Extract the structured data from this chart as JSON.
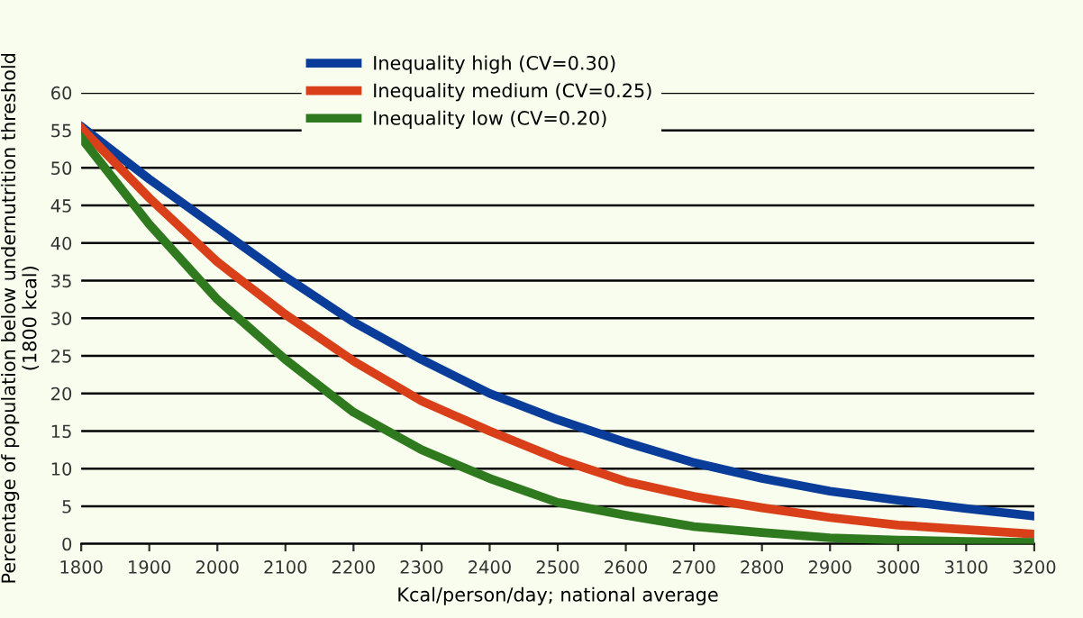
{
  "chart_data": {
    "type": "line",
    "xlabel": "Kcal/person/day; national average",
    "ylabel": "Percentage of population below undernutrition threshold\n(1800 kcal)",
    "x": [
      1800,
      1900,
      2000,
      2100,
      2200,
      2300,
      2400,
      2500,
      2600,
      2700,
      2800,
      2900,
      3000,
      3100,
      3200
    ],
    "series": [
      {
        "name": "Inequality high (CV=0.30)",
        "color": "#0a3c9a",
        "values": [
          55.5,
          48.5,
          42,
          35.5,
          29.5,
          24.5,
          20,
          16.5,
          13.5,
          10.8,
          8.7,
          7,
          5.8,
          4.7,
          3.7
        ]
      },
      {
        "name": "Inequality medium (CV=0.25)",
        "color": "#d9401a",
        "values": [
          55.3,
          46,
          37.5,
          30.5,
          24.3,
          19,
          15,
          11.3,
          8.3,
          6.3,
          4.8,
          3.5,
          2.5,
          1.9,
          1.3
        ]
      },
      {
        "name": "Inequality low (CV=0.20)",
        "color": "#2f7a1e",
        "values": [
          54,
          42.5,
          32.5,
          24.5,
          17.5,
          12.5,
          8.7,
          5.5,
          3.8,
          2.3,
          1.5,
          0.8,
          0.5,
          0.3,
          0.2
        ]
      }
    ],
    "xlim": [
      1800,
      3200
    ],
    "xticks": [
      1800,
      1900,
      2000,
      2100,
      2200,
      2300,
      2400,
      2500,
      2600,
      2700,
      2800,
      2900,
      3000,
      3100,
      3200
    ],
    "ylim": [
      0,
      60
    ],
    "yticks": [
      0,
      5,
      10,
      15,
      20,
      25,
      30,
      35,
      40,
      45,
      50,
      55,
      60
    ],
    "grid": "y",
    "legend": "top",
    "marker": "none",
    "line_style": "solid"
  }
}
